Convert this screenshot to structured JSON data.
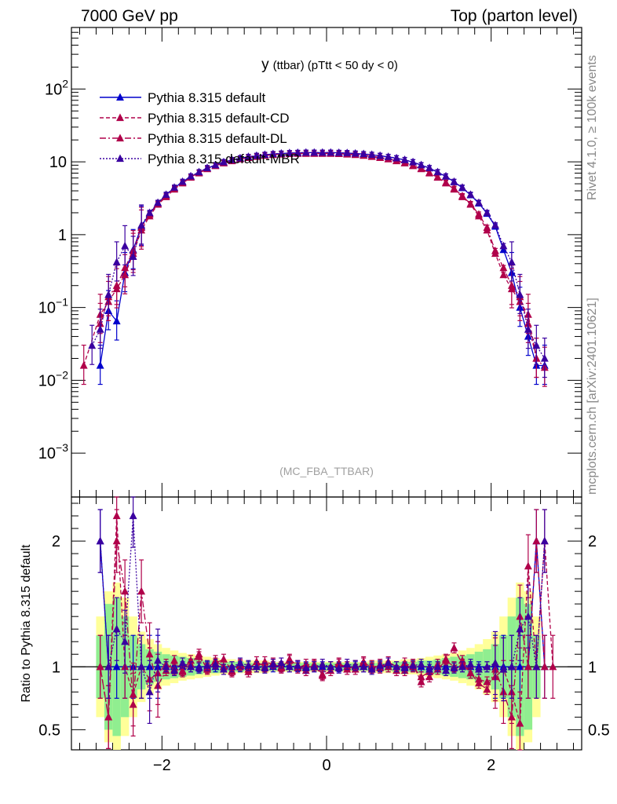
{
  "header": {
    "energy": "7000 GeV pp",
    "process": "Top (parton level)"
  },
  "side": {
    "rivet": "Rivet 4.1.0, ≥ 100k events",
    "mcplots": "mcplots.cern.ch [arXiv:2401.10621]"
  },
  "colors": {
    "default": "#0000cc",
    "cd": "#b0004a",
    "dl": "#b0004a",
    "mbr": "#3a00a0",
    "band_green": "#90ee90",
    "band_yellow": "#ffff99"
  },
  "chart_data": [
    {
      "type": "line",
      "panel": "main",
      "title_main": "y",
      "title_rest": "(ttbar) (pTtt < 50 dy < 0)",
      "watermark": "(MC_FBA_TTBAR)",
      "yscale": "log",
      "xlim": [
        -3.1,
        3.1
      ],
      "ylim": [
        0.00025,
        700
      ],
      "yticks": [
        {
          "v": 0.001,
          "base": "10",
          "exp": "−3"
        },
        {
          "v": 0.01,
          "base": "10",
          "exp": "−2"
        },
        {
          "v": 0.1,
          "base": "10",
          "exp": "−1"
        },
        {
          "v": 1,
          "base": "1",
          "exp": ""
        },
        {
          "v": 10,
          "base": "10",
          "exp": ""
        },
        {
          "v": 100,
          "base": "10",
          "exp": "2"
        }
      ],
      "legend": [
        {
          "key": "default",
          "label": "Pythia 8.315 default",
          "dash": ""
        },
        {
          "key": "cd",
          "label": "Pythia 8.315 default-CD",
          "dash": "5,3"
        },
        {
          "key": "dl",
          "label": "Pythia 8.315 default-DL",
          "dash": "8,3,2,3"
        },
        {
          "key": "mbr",
          "label": "Pythia 8.315 default-MBR",
          "dash": "2,2"
        }
      ],
      "x": [
        -2.95,
        -2.85,
        -2.75,
        -2.65,
        -2.55,
        -2.45,
        -2.35,
        -2.25,
        -2.15,
        -2.05,
        -1.95,
        -1.85,
        -1.75,
        -1.65,
        -1.55,
        -1.45,
        -1.35,
        -1.25,
        -1.15,
        -1.05,
        -0.95,
        -0.85,
        -0.75,
        -0.65,
        -0.55,
        -0.45,
        -0.35,
        -0.25,
        -0.15,
        -0.05,
        0.05,
        0.15,
        0.25,
        0.35,
        0.45,
        0.55,
        0.65,
        0.75,
        0.85,
        0.95,
        1.05,
        1.15,
        1.25,
        1.35,
        1.45,
        1.55,
        1.65,
        1.75,
        1.85,
        1.95,
        2.05,
        2.15,
        2.25,
        2.35,
        2.45,
        2.55,
        2.65,
        2.75,
        2.85,
        2.95
      ],
      "series": [
        {
          "name": "default",
          "values": [
            null,
            null,
            0.016,
            0.09,
            0.065,
            0.3,
            0.62,
            1.3,
            1.95,
            2.7,
            3.5,
            4.4,
            5.3,
            6.3,
            7.2,
            8.2,
            9.0,
            9.9,
            10.6,
            11.2,
            11.7,
            12.1,
            12.5,
            12.8,
            13.0,
            13.2,
            13.3,
            13.4,
            13.4,
            13.4,
            13.4,
            13.3,
            13.2,
            13.0,
            12.8,
            12.5,
            12.1,
            11.7,
            11.2,
            10.6,
            9.9,
            9.0,
            8.2,
            7.2,
            6.3,
            5.3,
            4.4,
            3.5,
            2.7,
            1.95,
            1.3,
            0.62,
            0.3,
            0.1,
            0.04,
            0.016,
            0.016,
            null,
            null,
            null
          ]
        },
        {
          "name": "cd",
          "values": [
            0.016,
            null,
            0.08,
            0.12,
            0.18,
            0.28,
            0.55,
            1.15,
            1.8,
            2.6,
            3.3,
            4.2,
            5.1,
            6.1,
            7.0,
            8.0,
            8.8,
            9.6,
            10.3,
            10.9,
            11.4,
            11.8,
            12.2,
            12.5,
            12.7,
            12.9,
            13.0,
            13.0,
            13.0,
            13.0,
            13.0,
            12.9,
            12.7,
            12.5,
            12.2,
            11.8,
            11.4,
            10.9,
            10.3,
            9.6,
            8.8,
            8.0,
            7.0,
            6.1,
            5.1,
            4.2,
            3.3,
            2.6,
            1.8,
            1.15,
            0.55,
            0.28,
            0.18,
            0.12,
            0.08,
            0.02,
            null,
            null,
            null,
            null
          ]
        },
        {
          "name": "dl",
          "values": [
            null,
            null,
            0.06,
            0.14,
            0.2,
            0.35,
            0.6,
            1.25,
            1.9,
            2.65,
            3.4,
            4.3,
            5.2,
            6.2,
            7.1,
            8.1,
            8.9,
            9.7,
            10.4,
            11.0,
            11.5,
            11.9,
            12.3,
            12.6,
            12.8,
            13.0,
            13.1,
            13.1,
            13.1,
            13.1,
            13.1,
            13.0,
            12.8,
            12.6,
            12.3,
            11.9,
            11.5,
            11.0,
            10.4,
            9.7,
            8.9,
            8.1,
            7.1,
            6.2,
            5.2,
            4.3,
            3.4,
            2.65,
            1.9,
            1.25,
            0.6,
            0.35,
            0.2,
            0.14,
            0.06,
            0.02,
            0.015,
            null,
            null,
            null
          ]
        },
        {
          "name": "mbr",
          "values": [
            null,
            0.03,
            0.05,
            0.15,
            0.42,
            0.7,
            0.5,
            1.35,
            2.0,
            2.75,
            3.55,
            4.45,
            5.35,
            6.35,
            7.25,
            8.25,
            9.05,
            9.95,
            10.65,
            11.25,
            11.75,
            12.15,
            12.55,
            12.85,
            13.05,
            13.25,
            13.35,
            13.45,
            13.45,
            13.45,
            13.45,
            13.35,
            13.25,
            13.05,
            12.85,
            12.55,
            12.15,
            11.75,
            11.25,
            10.65,
            9.95,
            9.05,
            8.25,
            7.25,
            6.35,
            5.35,
            4.45,
            3.55,
            2.75,
            2.0,
            1.35,
            0.7,
            0.42,
            0.15,
            0.05,
            0.03,
            0.02,
            null,
            null,
            null
          ]
        }
      ]
    },
    {
      "type": "line",
      "panel": "ratio",
      "ylabel": "Ratio to Pythia 8.315 default",
      "xlim": [
        -3.1,
        3.1
      ],
      "ylim": [
        0.34,
        2.35
      ],
      "yticks": [
        0.5,
        1,
        2
      ],
      "xticks": [
        -2,
        0,
        2
      ],
      "xtick_labels": [
        "−2",
        "0",
        "2"
      ],
      "band_inner": [
        null,
        null,
        0.75,
        0.5,
        0.45,
        0.6,
        0.75,
        0.82,
        0.86,
        0.88,
        0.9,
        0.91,
        0.92,
        0.93,
        0.94,
        0.95,
        0.95,
        0.96,
        0.96,
        0.96,
        0.97,
        0.97,
        0.97,
        0.97,
        0.97,
        0.97,
        0.97,
        0.97,
        0.97,
        0.97,
        0.97,
        0.97,
        0.97,
        0.97,
        0.97,
        0.97,
        0.97,
        0.97,
        0.96,
        0.96,
        0.96,
        0.95,
        0.95,
        0.94,
        0.93,
        0.92,
        0.91,
        0.9,
        0.88,
        0.86,
        0.82,
        0.75,
        0.6,
        0.45,
        0.5,
        0.75,
        null,
        null,
        null,
        null
      ],
      "band_outer": [
        null,
        null,
        0.6,
        0.4,
        0.33,
        0.45,
        0.6,
        0.72,
        0.78,
        0.82,
        0.85,
        0.87,
        0.89,
        0.9,
        0.91,
        0.92,
        0.93,
        0.94,
        0.94,
        0.95,
        0.95,
        0.95,
        0.95,
        0.96,
        0.96,
        0.96,
        0.96,
        0.96,
        0.96,
        0.96,
        0.96,
        0.96,
        0.96,
        0.96,
        0.96,
        0.95,
        0.95,
        0.95,
        0.95,
        0.94,
        0.94,
        0.93,
        0.92,
        0.91,
        0.9,
        0.89,
        0.87,
        0.85,
        0.82,
        0.78,
        0.72,
        0.6,
        0.45,
        0.33,
        0.4,
        0.6,
        null,
        null,
        null,
        null
      ],
      "series": [
        {
          "name": "default",
          "values": [
            null,
            null,
            2.0,
            1.0,
            1.0,
            1.0,
            1.0,
            1.0,
            1.0,
            1.0,
            1.0,
            1.0,
            1.0,
            1.0,
            1.0,
            1.0,
            1.0,
            1.0,
            1.0,
            1.0,
            1.0,
            1.0,
            1.0,
            1.0,
            1.0,
            1.0,
            1.0,
            1.0,
            1.0,
            1.0,
            1.0,
            1.0,
            1.0,
            1.0,
            1.0,
            1.0,
            1.0,
            1.0,
            1.0,
            1.0,
            1.0,
            1.0,
            1.0,
            1.0,
            1.0,
            1.0,
            1.0,
            1.0,
            1.0,
            1.0,
            1.0,
            1.0,
            1.0,
            1.0,
            1.0,
            2.0,
            1.0,
            null,
            null,
            null
          ]
        },
        {
          "name": "cd",
          "values": [
            null,
            null,
            1.0,
            0.6,
            2.2,
            1.0,
            0.78,
            1.0,
            0.9,
            0.95,
            1.02,
            0.98,
            0.97,
            1.05,
            1.08,
            0.99,
            1.03,
            1.06,
            0.97,
            1.01,
            0.96,
            1.0,
            1.04,
            1.02,
            1.0,
            1.05,
            0.99,
            1.02,
            1.01,
            0.93,
            0.97,
            1.02,
            1.0,
            0.98,
            1.03,
            1.01,
            0.99,
            1.04,
            1.0,
            0.97,
            1.02,
            0.88,
            0.92,
            0.98,
            1.05,
            1.0,
            1.05,
            0.95,
            0.9,
            0.88,
            0.92,
            0.98,
            0.8,
            0.55,
            1.8,
            1.0,
            2.0,
            1.0,
            null,
            null
          ]
        },
        {
          "name": "dl",
          "values": [
            null,
            null,
            1.0,
            0.6,
            2.0,
            1.6,
            0.7,
            1.6,
            1.1,
            0.85,
            0.97,
            1.05,
            0.96,
            1.02,
            1.1,
            0.98,
            1.05,
            1.0,
            0.96,
            1.02,
            0.98,
            1.04,
            1.0,
            1.03,
            0.99,
            1.06,
            1.01,
            0.97,
            1.02,
            0.94,
            1.0,
            1.03,
            0.98,
            1.01,
            1.04,
            0.99,
            1.02,
            1.0,
            0.97,
            1.03,
            1.0,
            0.92,
            0.96,
            1.02,
            1.06,
            1.15,
            1.02,
            0.95,
            0.87,
            0.82,
            0.98,
            0.8,
            0.6,
            1.4,
            1.0,
            2.0,
            1.0,
            null,
            null,
            null
          ]
        },
        {
          "name": "mbr",
          "values": [
            null,
            null,
            2.0,
            1.0,
            1.3,
            1.2,
            2.2,
            1.0,
            0.8,
            1.05,
            1.0,
            0.97,
            1.03,
            1.0,
            0.99,
            1.01,
            1.02,
            0.98,
            1.0,
            1.03,
            1.01,
            1.0,
            0.99,
            1.02,
            1.03,
            1.0,
            1.01,
            0.99,
            1.0,
            1.02,
            1.0,
            0.99,
            1.02,
            1.01,
            1.0,
            0.98,
            1.01,
            1.03,
            1.0,
            0.99,
            1.01,
            1.02,
            0.98,
            1.0,
            0.97,
            0.99,
            1.0,
            1.02,
            0.98,
            1.0,
            1.03,
            0.98,
            1.0,
            1.3,
            1.4,
            1.0,
            2.0,
            null,
            null,
            null
          ]
        }
      ]
    }
  ]
}
